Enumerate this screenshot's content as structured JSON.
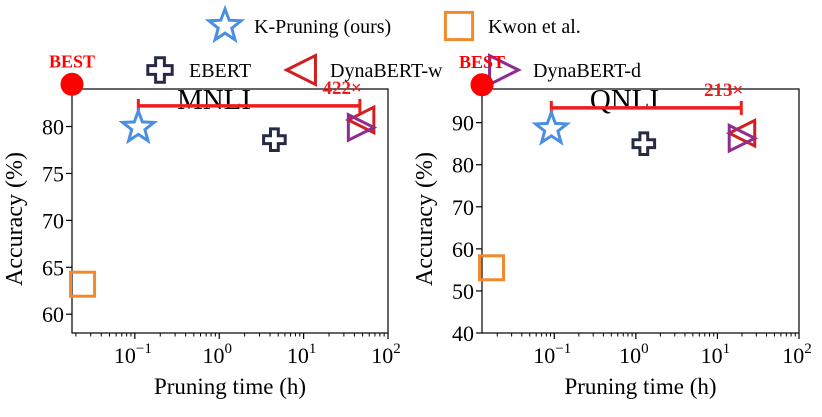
{
  "legend": {
    "items": [
      {
        "label": "K-Pruning (ours)",
        "marker": "star",
        "color": "#4a8fe3"
      },
      {
        "label": "Kwon et al.",
        "marker": "square",
        "color": "#f08a2c"
      },
      {
        "label": "EBERT",
        "marker": "cross",
        "color": "#272a45"
      },
      {
        "label": "DynaBERT-w",
        "marker": "triangle-left",
        "color": "#d11f1f"
      },
      {
        "label": "DynaBERT-d",
        "marker": "triangle-right",
        "color": "#8f2c8f"
      }
    ]
  },
  "colors": {
    "best": "#ff0000",
    "speedup": "#ee1c1c"
  },
  "chart_data": [
    {
      "type": "scatter",
      "title": "MNLI",
      "xlabel": "Pruning time (h)",
      "ylabel": "Accuracy (%)",
      "xscale": "log",
      "xlim": [
        0.018,
        100
      ],
      "ylim": [
        58,
        84
      ],
      "xticks": [
        0.1,
        1,
        10,
        100
      ],
      "xtick_labels": [
        {
          "base": "10",
          "exp": "−1"
        },
        {
          "base": "10",
          "exp": "0"
        },
        {
          "base": "10",
          "exp": "1"
        },
        {
          "base": "10",
          "exp": "2"
        }
      ],
      "yticks": [
        60,
        65,
        70,
        75,
        80
      ],
      "ytick_labels": [
        "60",
        "65",
        "70",
        "75",
        "80"
      ],
      "best_label": "BEST",
      "best_point": {
        "x": 0.018,
        "y": 84.5
      },
      "speedup": {
        "label": "422×",
        "from": 0.11,
        "to": 46.4,
        "y": 82.2
      },
      "series": [
        {
          "name": "K-Pruning (ours)",
          "x": 0.11,
          "y": 79.9
        },
        {
          "name": "Kwon et al.",
          "x": 0.024,
          "y": 63.2
        },
        {
          "name": "EBERT",
          "x": 4.5,
          "y": 78.6
        },
        {
          "name": "DynaBERT-w",
          "x": 48,
          "y": 80.7
        },
        {
          "name": "DynaBERT-d",
          "x": 48,
          "y": 79.9
        }
      ]
    },
    {
      "type": "scatter",
      "title": "QNLI",
      "xlabel": "Pruning time (h)",
      "ylabel": "Accuracy (%)",
      "xscale": "log",
      "xlim": [
        0.013,
        100
      ],
      "ylim": [
        40,
        98
      ],
      "xticks": [
        0.1,
        1,
        10,
        100
      ],
      "xtick_labels": [
        {
          "base": "10",
          "exp": "−1"
        },
        {
          "base": "10",
          "exp": "0"
        },
        {
          "base": "10",
          "exp": "1"
        },
        {
          "base": "10",
          "exp": "2"
        }
      ],
      "yticks": [
        40,
        50,
        60,
        70,
        80,
        90
      ],
      "ytick_labels": [
        "40",
        "50",
        "60",
        "70",
        "80",
        "90"
      ],
      "best_label": "BEST",
      "best_point": {
        "x": 0.013,
        "y": 99
      },
      "speedup": {
        "label": "213×",
        "from": 0.092,
        "to": 19.6,
        "y": 93.5
      },
      "series": [
        {
          "name": "K-Pruning (ours)",
          "x": 0.092,
          "y": 88.5
        },
        {
          "name": "Kwon et al.",
          "x": 0.017,
          "y": 55.5
        },
        {
          "name": "EBERT",
          "x": 1.25,
          "y": 85.0
        },
        {
          "name": "DynaBERT-w",
          "x": 20,
          "y": 87.5
        },
        {
          "name": "DynaBERT-d",
          "x": 20,
          "y": 86.3
        }
      ]
    }
  ]
}
